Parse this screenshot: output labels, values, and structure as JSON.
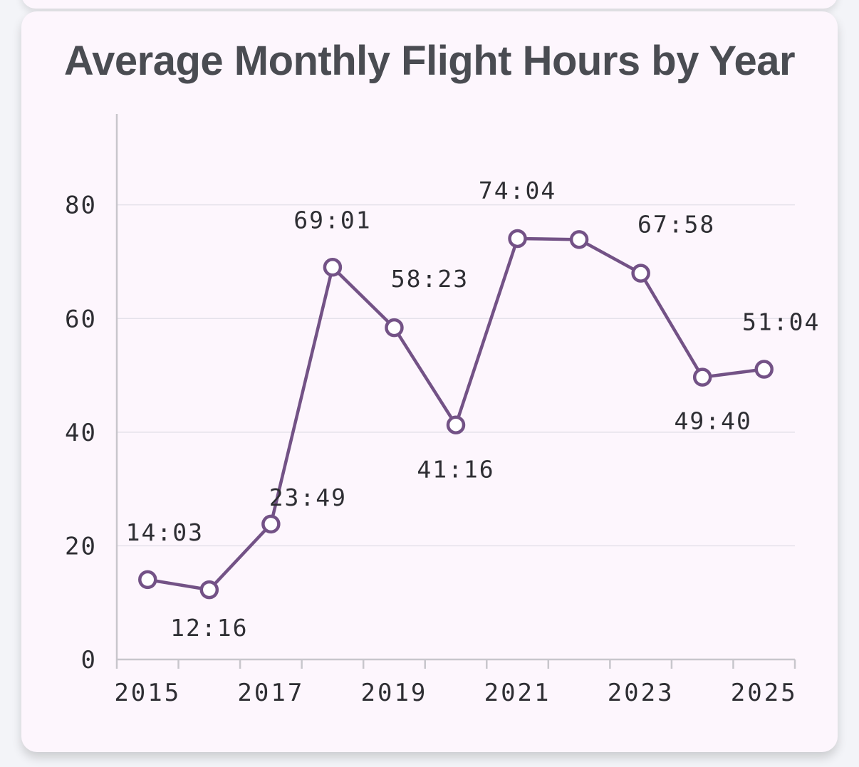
{
  "chart_data": {
    "type": "line",
    "title": "Average Monthly Flight Hours by Year",
    "xlabel": "",
    "ylabel": "",
    "x": [
      2015.5,
      2016.5,
      2017.5,
      2018.5,
      2019.5,
      2020.5,
      2021.5,
      2022.5,
      2023.5,
      2024.5,
      2025.5
    ],
    "series": [
      {
        "values": [
          14.05,
          12.27,
          23.82,
          69.02,
          58.38,
          41.27,
          74.07,
          73.9,
          67.97,
          49.67,
          51.07
        ],
        "labels": [
          "14:03",
          "12:16",
          "23:49",
          "69:01",
          "58:23",
          "41:16",
          "74:04",
          "",
          "67:58",
          "49:40",
          "51:04"
        ],
        "color": "#735286"
      }
    ],
    "xlim": [
      2015,
      2026
    ],
    "ylim": [
      0,
      96
    ],
    "xticks": [
      2015,
      2016,
      2017,
      2018,
      2019,
      2020,
      2021,
      2022,
      2023,
      2024,
      2025,
      2026
    ],
    "xtick_labels": [
      "2015",
      "2017",
      "2019",
      "2021",
      "2023",
      "2025"
    ],
    "xtick_label_values": [
      2015.5,
      2017.5,
      2019.5,
      2021.5,
      2023.5,
      2025.5
    ],
    "yticks": [
      0,
      20,
      40,
      60,
      80
    ],
    "ytick_labels": [
      "0",
      "20",
      "40",
      "60",
      "80"
    ],
    "grid": true,
    "legend": "none",
    "colors": {
      "line": "#735286",
      "grid": "#e4e1ea",
      "axis": "#c8c6cc",
      "text": "#2e2e33",
      "marker_fill": "#ffffff"
    }
  }
}
